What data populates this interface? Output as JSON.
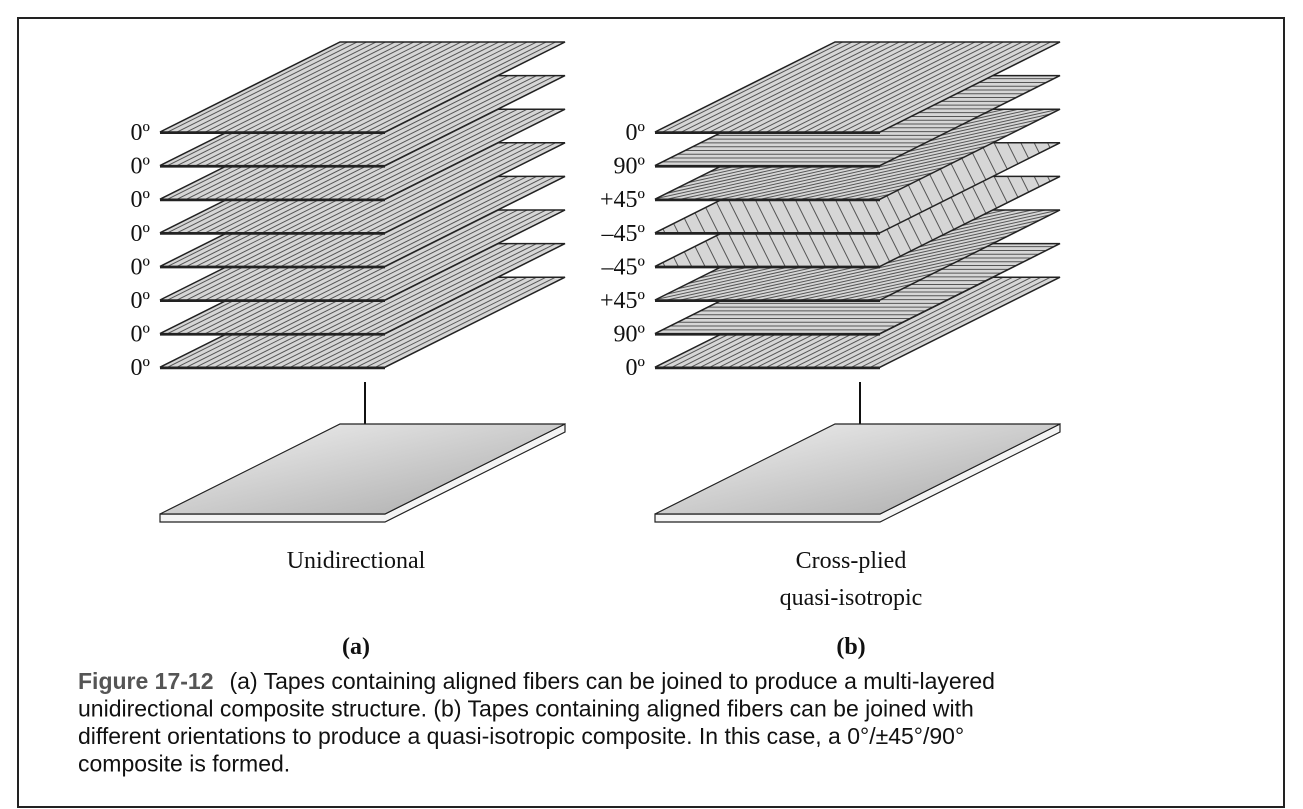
{
  "panels": [
    {
      "layers": [
        "0º",
        "0º",
        "0º",
        "0º",
        "0º",
        "0º",
        "0º",
        "0º"
      ],
      "label": [
        "Unidirectional"
      ],
      "tag": "(a)"
    },
    {
      "layers": [
        "0º",
        "90º",
        "+45º",
        "–45º",
        "–45º",
        "+45º",
        "90º",
        "0º"
      ],
      "label": [
        "Cross-plied",
        "quasi-isotropic"
      ],
      "tag": "(b)"
    }
  ],
  "caption": {
    "figure": "Figure 17-12",
    "lines": [
      "(a) Tapes containing aligned fibers can be joined to produce a multi-layered",
      "unidirectional composite structure. (b) Tapes containing aligned fibers can be joined with",
      "different orientations to produce a quasi-isotropic composite. In this case, a 0°/±45°/90°",
      "composite is formed."
    ]
  }
}
